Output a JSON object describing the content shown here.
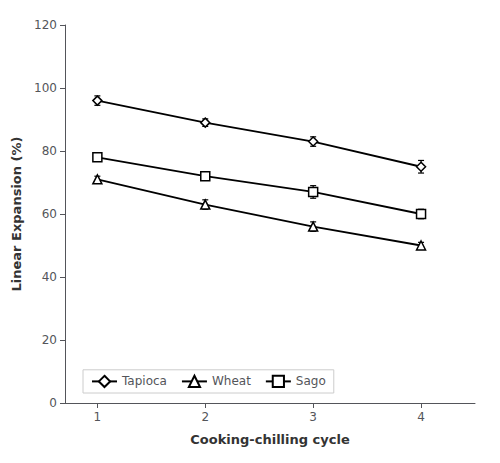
{
  "chart_data": {
    "type": "line",
    "xlabel": "Cooking-chilling cycle",
    "ylabel": "Linear Expansion (%)",
    "x": [
      1,
      2,
      3,
      4
    ],
    "xlim": [
      0.7,
      4.5
    ],
    "xticks": [
      1,
      2,
      3,
      4
    ],
    "ylim": [
      0,
      120
    ],
    "yticks": [
      0,
      20,
      40,
      60,
      80,
      100,
      120
    ],
    "grid": false,
    "legend": "lower left",
    "series": [
      {
        "name": "Tapioca",
        "color": "#000000",
        "marker": "diamond",
        "values": [
          96,
          89,
          83,
          75
        ],
        "errors": [
          1.5,
          1.2,
          1.5,
          2.0
        ]
      },
      {
        "name": "Wheat",
        "color": "#000000",
        "marker": "triangle",
        "values": [
          71,
          63,
          56,
          50
        ],
        "errors": [
          1.0,
          1.5,
          1.5,
          1.0
        ]
      },
      {
        "name": "Sago",
        "color": "#000000",
        "marker": "square",
        "values": [
          78,
          72,
          67,
          60
        ],
        "errors": [
          1.0,
          1.2,
          2.0,
          1.5
        ]
      }
    ]
  }
}
